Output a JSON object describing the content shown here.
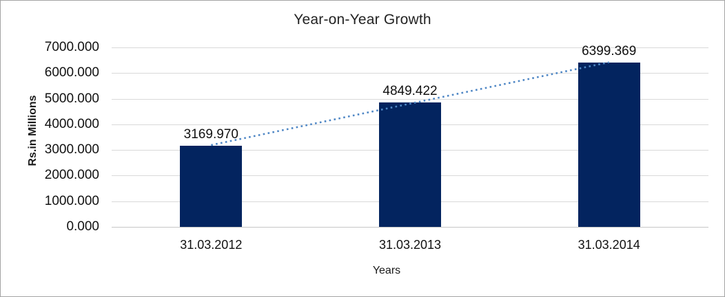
{
  "chart_data": {
    "type": "bar",
    "title": "Year-on-Year Growth",
    "xlabel": "Years",
    "ylabel": "Rs.in Millions",
    "categories": [
      "31.03.2012",
      "31.03.2013",
      "31.03.2014"
    ],
    "values": [
      3169.97,
      4849.422,
      6399.369
    ],
    "data_labels": [
      "3169.970",
      "4849.422",
      "6399.369"
    ],
    "ylim": [
      0,
      7000
    ],
    "ytick_step": 1000,
    "ytick_labels": [
      "0.000",
      "1000.000",
      "2000.000",
      "3000.000",
      "4000.000",
      "5000.000",
      "6000.000",
      "7000.000"
    ],
    "grid": true,
    "legend_position": "none",
    "trendline": {
      "type": "linear",
      "style": "dotted",
      "color": "#4f87c5"
    },
    "colors": {
      "bar_fill": "#03245f",
      "gridline": "#d9d9d9",
      "axis_line": "#c6c6c6",
      "text": "#111111",
      "frame_border": "#a3a3a3",
      "background": "#ffffff"
    }
  }
}
